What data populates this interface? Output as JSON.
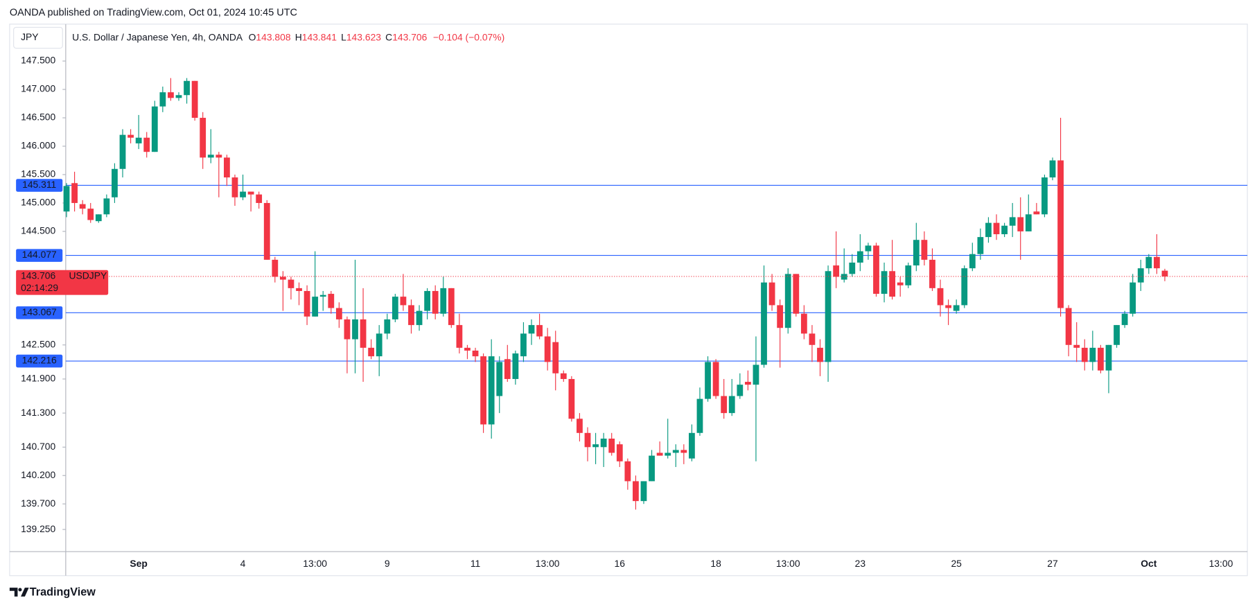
{
  "header": "OANDA published on TradingView.com, Oct 01, 2024 10:45 UTC",
  "footer": "TradingView",
  "chart_data": {
    "type": "candlestick",
    "currency": "JPY",
    "title": "U.S. Dollar / Japanese Yen, 4h, OANDA",
    "ohlc_letters": [
      "O",
      "H",
      "L",
      "C"
    ],
    "change": "−0.104 (−0.07%)",
    "symbol": "USDJPY",
    "countdown": "02:14:29",
    "up_color": "#089981",
    "down_color": "#f23645",
    "level_color": "#2962ff",
    "grid": false,
    "levels": [
      145.311,
      144.077,
      143.067,
      142.216
    ],
    "ylim": [
      138.86,
      148.15
    ],
    "yticks": [
      {
        "value": 147.5,
        "label": "147.500"
      },
      {
        "value": 147,
        "label": "147.000"
      },
      {
        "value": 146.5,
        "label": "146.500"
      },
      {
        "value": 146,
        "label": "146.000"
      },
      {
        "value": 145.5,
        "label": "145.500"
      },
      {
        "value": 145,
        "label": "145.000"
      },
      {
        "value": 144.5,
        "label": "144.500"
      },
      {
        "value": 142.5,
        "label": "142.500"
      },
      {
        "value": 141.9,
        "label": "141.900"
      },
      {
        "value": 141.3,
        "label": "141.300"
      },
      {
        "value": 140.7,
        "label": "140.700"
      },
      {
        "value": 140.2,
        "label": "140.200"
      },
      {
        "value": 139.7,
        "label": "139.700"
      },
      {
        "value": 139.25,
        "label": "139.250"
      }
    ],
    "categories": [
      null,
      null,
      null,
      null,
      null,
      null,
      null,
      null,
      null,
      "Sep",
      null,
      null,
      null,
      null,
      null,
      null,
      null,
      null,
      null,
      null,
      null,
      null,
      "4",
      null,
      null,
      null,
      null,
      null,
      null,
      null,
      null,
      "13:00",
      null,
      null,
      null,
      null,
      null,
      null,
      null,
      null,
      "9",
      null,
      null,
      null,
      null,
      null,
      null,
      null,
      null,
      null,
      null,
      "11",
      null,
      null,
      null,
      null,
      null,
      null,
      null,
      null,
      "13:00",
      null,
      null,
      null,
      null,
      null,
      null,
      null,
      null,
      "16",
      null,
      null,
      null,
      null,
      null,
      null,
      null,
      null,
      null,
      null,
      null,
      "18",
      null,
      null,
      null,
      null,
      null,
      null,
      null,
      null,
      "13:00",
      null,
      null,
      null,
      null,
      null,
      null,
      null,
      null,
      "23",
      null,
      null,
      null,
      null,
      null,
      null,
      null,
      null,
      null,
      null,
      null,
      "25",
      null,
      null,
      null,
      null,
      null,
      null,
      null,
      null,
      null,
      null,
      null,
      "27",
      null,
      null,
      null,
      null,
      null,
      null,
      null,
      null,
      null,
      null,
      null,
      "Oct",
      null,
      null,
      null,
      null,
      null,
      null,
      null,
      null,
      "13:00",
      null,
      null,
      null
    ],
    "open": [
      144.85,
      145.35,
      144.98,
      144.9,
      144.68,
      144.8,
      145.1,
      145.6,
      146.2,
      146.05,
      146.15,
      145.9,
      146.7,
      146.95,
      146.85,
      146.9,
      147.15,
      146.5,
      145.8,
      145.85,
      145.8,
      145.45,
      145.1,
      145.2,
      145.15,
      145.0,
      144.0,
      143.7,
      143.65,
      143.5,
      143.45,
      143.0,
      143.35,
      143.4,
      143.15,
      142.95,
      142.6,
      142.95,
      142.45,
      142.3,
      142.7,
      142.95,
      143.35,
      143.2,
      142.85,
      143.1,
      143.45,
      143.05,
      143.5,
      142.85,
      142.45,
      142.4,
      142.3,
      141.1,
      141.6,
      142.25,
      141.9,
      142.3,
      142.7,
      142.85,
      142.65,
      142.55,
      142.0,
      141.9,
      141.2,
      140.95,
      140.7,
      140.7,
      140.85,
      140.75,
      140.45,
      140.1,
      139.75,
      140.1,
      140.6,
      140.55,
      140.6,
      140.65,
      140.5,
      140.95,
      141.55,
      142.2,
      141.6,
      141.3,
      141.6,
      141.85,
      141.8,
      142.15,
      143.6,
      143.2,
      142.8,
      143.75,
      143.05,
      142.7,
      142.45,
      142.2,
      143.9,
      143.65,
      143.75,
      143.95,
      144.15,
      144.25,
      143.4,
      143.8,
      143.6,
      143.55,
      143.9,
      144.35,
      144.0,
      143.5,
      143.2,
      143.1,
      143.2,
      143.85,
      144.1,
      144.4,
      144.65,
      144.45,
      144.6,
      144.75,
      144.5,
      144.85,
      144.8,
      145.45,
      145.75,
      143.15,
      142.5,
      142.45,
      142.2,
      142.45,
      142.05,
      142.5,
      142.85,
      143.05,
      143.6,
      143.85,
      144.05,
      143.808,
      null,
      null,
      null,
      null,
      null,
      null,
      null,
      null,
      null,
      null
    ],
    "high": [
      145.35,
      145.55,
      145.05,
      145.0,
      144.8,
      145.15,
      145.7,
      146.3,
      146.3,
      146.55,
      146.25,
      146.8,
      147.05,
      147.2,
      146.95,
      147.2,
      147.15,
      146.6,
      146.3,
      145.9,
      145.85,
      145.5,
      145.5,
      145.2,
      145.2,
      145.05,
      144.05,
      143.8,
      143.7,
      143.6,
      143.55,
      144.15,
      143.45,
      143.45,
      143.25,
      143.0,
      144.0,
      143.5,
      142.6,
      142.85,
      143.05,
      143.4,
      143.75,
      143.3,
      143.2,
      143.5,
      143.55,
      143.7,
      143.5,
      143.05,
      142.5,
      142.45,
      142.35,
      142.6,
      142.3,
      142.5,
      142.4,
      142.9,
      142.95,
      143.05,
      142.8,
      142.75,
      142.05,
      141.95,
      141.3,
      141.05,
      140.95,
      140.95,
      140.95,
      140.8,
      140.5,
      140.2,
      140.1,
      140.65,
      140.8,
      141.2,
      140.75,
      140.75,
      141.1,
      141.75,
      142.3,
      142.25,
      141.9,
      141.9,
      142.0,
      142.05,
      142.65,
      143.9,
      143.75,
      143.3,
      143.85,
      143.75,
      143.2,
      142.85,
      142.6,
      143.9,
      144.5,
      144.2,
      144.1,
      144.45,
      144.3,
      144.3,
      143.95,
      144.35,
      143.7,
      143.95,
      144.65,
      144.5,
      144.2,
      143.65,
      143.3,
      143.3,
      143.9,
      144.3,
      144.55,
      144.75,
      144.8,
      144.65,
      145.0,
      145.1,
      145.15,
      145.0,
      145.5,
      145.8,
      146.5,
      143.2,
      142.9,
      142.6,
      142.75,
      142.5,
      142.5,
      142.85,
      143.1,
      143.75,
      144.0,
      144.1,
      144.45,
      143.841,
      null,
      null,
      null,
      null,
      null,
      null,
      null,
      null,
      null,
      null
    ],
    "low": [
      144.75,
      144.85,
      144.8,
      144.65,
      144.65,
      144.75,
      145.0,
      145.45,
      146.05,
      145.95,
      145.8,
      145.9,
      146.6,
      146.8,
      146.8,
      146.75,
      146.45,
      145.6,
      145.7,
      145.1,
      145.3,
      144.95,
      145.05,
      144.85,
      144.9,
      144.0,
      143.6,
      143.1,
      143.3,
      143.2,
      142.85,
      143.0,
      143.1,
      143.05,
      142.8,
      142.0,
      142.0,
      141.85,
      142.25,
      141.95,
      142.6,
      142.9,
      143.1,
      142.7,
      142.75,
      142.95,
      142.95,
      143.0,
      142.8,
      142.35,
      142.25,
      142.2,
      140.95,
      140.85,
      141.3,
      141.85,
      141.8,
      142.2,
      142.5,
      142.6,
      142.05,
      141.7,
      141.85,
      141.15,
      140.8,
      140.45,
      140.4,
      140.35,
      140.55,
      140.35,
      139.95,
      139.6,
      139.7,
      140.1,
      140.55,
      140.5,
      140.35,
      140.4,
      140.45,
      140.9,
      141.5,
      141.55,
      141.2,
      141.25,
      141.55,
      141.7,
      140.45,
      142.1,
      143.1,
      142.1,
      142.7,
      143.0,
      142.6,
      142.2,
      141.95,
      141.85,
      143.5,
      143.6,
      143.7,
      143.8,
      144.0,
      143.35,
      143.25,
      143.3,
      143.35,
      143.5,
      143.8,
      143.9,
      143.45,
      143.0,
      142.85,
      143.05,
      143.15,
      143.8,
      144.0,
      144.3,
      144.35,
      144.4,
      144.4,
      144.0,
      144.5,
      144.8,
      144.75,
      145.4,
      143.0,
      142.3,
      142.2,
      142.05,
      142.05,
      142.0,
      141.65,
      142.45,
      142.8,
      143.0,
      143.45,
      143.75,
      143.75,
      143.623,
      null,
      null,
      null,
      null,
      null,
      null,
      null,
      null,
      null,
      null
    ],
    "close": [
      145.3,
      145.0,
      144.9,
      144.7,
      144.8,
      145.08,
      145.6,
      146.2,
      146.15,
      146.15,
      145.9,
      146.7,
      146.95,
      146.85,
      146.9,
      147.15,
      146.5,
      145.8,
      145.85,
      145.8,
      145.45,
      145.1,
      145.2,
      145.15,
      145.0,
      144.0,
      143.7,
      143.65,
      143.5,
      143.45,
      143.0,
      143.35,
      143.38,
      143.15,
      142.95,
      142.6,
      142.95,
      142.45,
      142.3,
      142.7,
      142.95,
      143.35,
      143.2,
      142.85,
      143.1,
      143.45,
      143.05,
      143.5,
      142.85,
      142.45,
      142.4,
      142.3,
      141.1,
      142.3,
      142.2,
      141.9,
      142.35,
      142.7,
      142.85,
      142.65,
      142.2,
      142.0,
      141.9,
      141.2,
      140.95,
      140.7,
      140.75,
      140.85,
      140.6,
      140.45,
      140.1,
      139.75,
      140.1,
      140.55,
      140.55,
      140.6,
      140.65,
      140.6,
      140.95,
      141.55,
      142.2,
      141.6,
      141.3,
      141.6,
      141.8,
      141.8,
      142.15,
      143.6,
      143.2,
      142.8,
      143.75,
      143.05,
      142.7,
      142.5,
      142.2,
      143.8,
      143.7,
      143.75,
      143.95,
      144.15,
      144.25,
      143.4,
      143.8,
      143.35,
      143.55,
      143.9,
      144.35,
      144.0,
      143.5,
      143.2,
      143.15,
      143.2,
      143.85,
      144.1,
      144.4,
      144.65,
      144.45,
      144.6,
      144.75,
      144.5,
      144.8,
      144.8,
      145.45,
      145.75,
      143.15,
      142.5,
      142.45,
      142.2,
      142.45,
      142.05,
      142.5,
      142.85,
      143.05,
      143.6,
      143.85,
      144.05,
      143.85,
      143.706,
      null,
      null,
      null,
      null,
      null,
      null,
      null,
      null,
      null,
      null
    ]
  }
}
